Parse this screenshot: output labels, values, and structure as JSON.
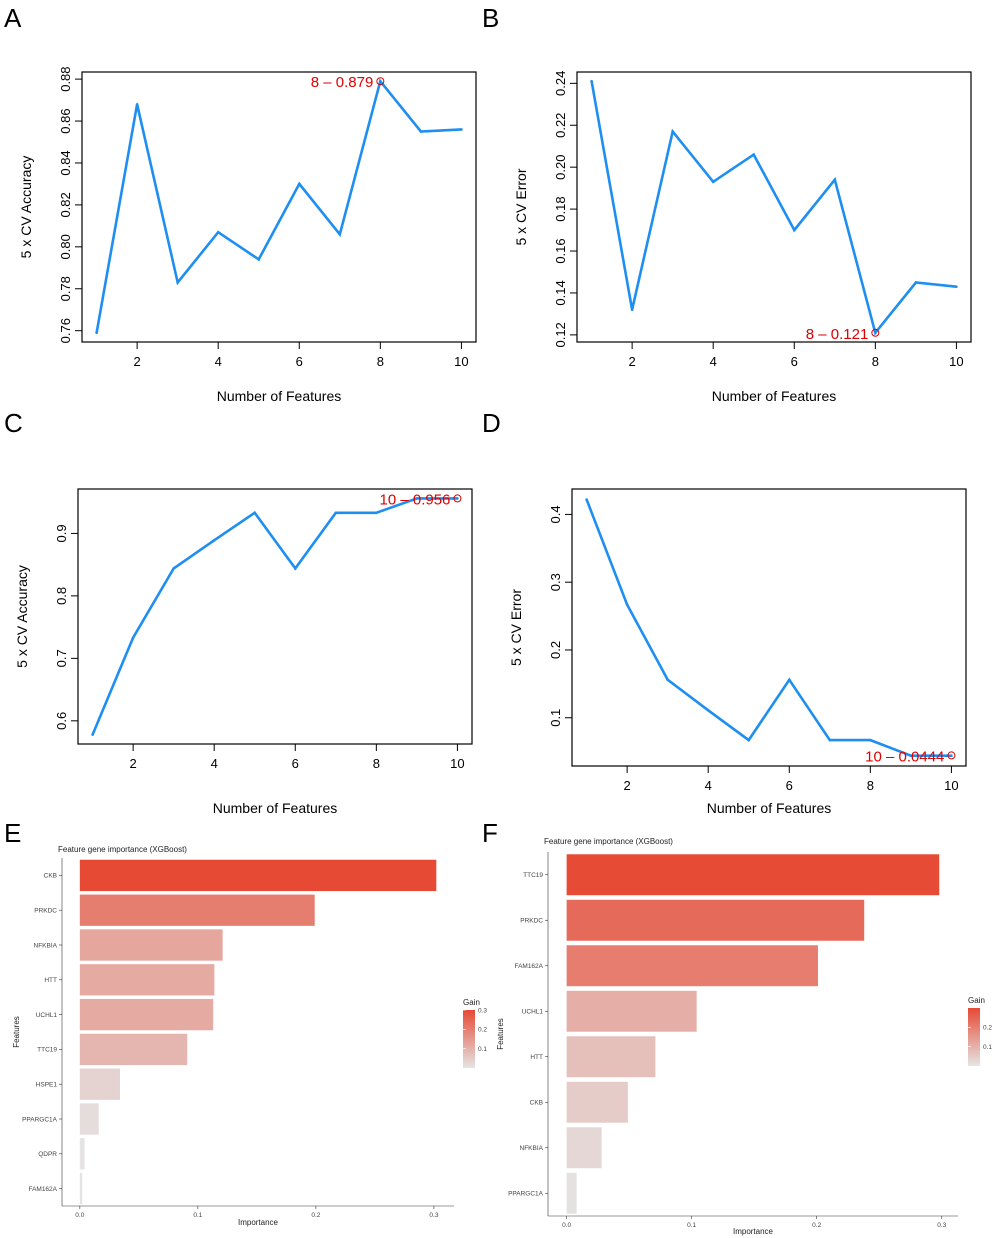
{
  "panel_letters": [
    "A",
    "B",
    "C",
    "D",
    "E",
    "F"
  ],
  "chart_data": [
    {
      "panel": "A",
      "type": "line",
      "xlabel": "Number of Features",
      "ylabel": "5 x CV Accuracy",
      "x": [
        1,
        2,
        3,
        4,
        5,
        6,
        7,
        8,
        9,
        10
      ],
      "y": [
        0.759,
        0.868,
        0.783,
        0.807,
        0.794,
        0.83,
        0.806,
        0.879,
        0.855,
        0.856
      ],
      "xticks": [
        2,
        4,
        6,
        8,
        10
      ],
      "yticks": [
        0.76,
        0.78,
        0.8,
        0.82,
        0.84,
        0.86,
        0.88
      ],
      "ytick_labels": [
        "0.76",
        "0.78",
        "0.80",
        "0.82",
        "0.84",
        "0.86",
        "0.88"
      ],
      "xlim": [
        0.64,
        10.36
      ],
      "ylim": [
        0.7546,
        0.8834
      ],
      "line_color": "#1e8ff0",
      "highlight": {
        "x": 8,
        "y": 0.879,
        "label": "8 – 0.879",
        "side": "left"
      }
    },
    {
      "panel": "B",
      "type": "line",
      "xlabel": "Number of Features",
      "ylabel": "5 x CV Error",
      "x": [
        1,
        2,
        3,
        4,
        5,
        6,
        7,
        8,
        9,
        10
      ],
      "y": [
        0.241,
        0.132,
        0.217,
        0.193,
        0.206,
        0.17,
        0.194,
        0.121,
        0.145,
        0.143
      ],
      "xticks": [
        2,
        4,
        6,
        8,
        10
      ],
      "yticks": [
        0.12,
        0.14,
        0.16,
        0.18,
        0.2,
        0.22,
        0.24
      ],
      "ytick_labels": [
        "0.12",
        "0.14",
        "0.16",
        "0.18",
        "0.20",
        "0.22",
        "0.24"
      ],
      "xlim": [
        0.64,
        10.36
      ],
      "ylim": [
        0.1166,
        0.2454
      ],
      "line_color": "#1e8ff0",
      "highlight": {
        "x": 8,
        "y": 0.121,
        "label": "8 – 0.121",
        "side": "left"
      }
    },
    {
      "panel": "C",
      "type": "line",
      "xlabel": "Number of Features",
      "ylabel": "5 x CV Accuracy",
      "x": [
        1,
        2,
        3,
        4,
        5,
        6,
        7,
        8,
        9,
        10
      ],
      "y": [
        0.578,
        0.733,
        0.844,
        0.889,
        0.933,
        0.844,
        0.933,
        0.933,
        0.956,
        0.956
      ],
      "xticks": [
        2,
        4,
        6,
        8,
        10
      ],
      "yticks": [
        0.6,
        0.7,
        0.8,
        0.9
      ],
      "ytick_labels": [
        "0.6",
        "0.7",
        "0.8",
        "0.9"
      ],
      "xlim": [
        0.64,
        10.36
      ],
      "ylim": [
        0.5629,
        0.9711
      ],
      "line_color": "#1e8ff0",
      "highlight": {
        "x": 10,
        "y": 0.956,
        "label": "10 – 0.956",
        "side": "left"
      }
    },
    {
      "panel": "D",
      "type": "line",
      "xlabel": "Number of Features",
      "ylabel": "5 x CV Error",
      "x": [
        1,
        2,
        3,
        4,
        5,
        6,
        7,
        8,
        9,
        10
      ],
      "y": [
        0.422,
        0.267,
        0.156,
        0.111,
        0.067,
        0.156,
        0.067,
        0.067,
        0.044,
        0.044
      ],
      "xticks": [
        2,
        4,
        6,
        8,
        10
      ],
      "yticks": [
        0.1,
        0.2,
        0.3,
        0.4
      ],
      "ytick_labels": [
        "0.1",
        "0.2",
        "0.3",
        "0.4"
      ],
      "xlim": [
        0.64,
        10.36
      ],
      "ylim": [
        0.0288,
        0.4375
      ],
      "line_color": "#1e8ff0",
      "highlight": {
        "x": 10,
        "y": 0.0444,
        "label": "10 – 0.0444",
        "side": "left"
      }
    },
    {
      "panel": "E",
      "type": "bar",
      "orientation": "horizontal",
      "title": "Feature gene importance (XGBoost)",
      "xlabel": "Importance",
      "ylabel": "Features",
      "categories": [
        "CKB",
        "PRKDC",
        "NFKBIA",
        "HTT",
        "UCHL1",
        "TTC19",
        "HSPE1",
        "PPARGC1A",
        "QDPR",
        "FAM162A"
      ],
      "values": [
        0.302,
        0.199,
        0.121,
        0.114,
        0.113,
        0.091,
        0.034,
        0.016,
        0.004,
        0.002
      ],
      "xticks": [
        0.0,
        0.1,
        0.2,
        0.3
      ],
      "xtick_labels": [
        "0.0",
        "0.1",
        "0.2",
        "0.3"
      ],
      "xlim": [
        -0.0151,
        0.317
      ],
      "legend": {
        "title": "Gain",
        "ticks": [
          0.1,
          0.2,
          0.3
        ],
        "tick_labels": [
          "0.1",
          "0.2",
          "0.3"
        ],
        "range": [
          0.0,
          0.3
        ],
        "low_color": "#e5e5e5",
        "high_color": "#e64a35"
      }
    },
    {
      "panel": "F",
      "type": "bar",
      "orientation": "horizontal",
      "title": "Feature gene importance (XGBoost)",
      "xlabel": "Importance",
      "ylabel": "Features",
      "categories": [
        "TTC19",
        "PRKDC",
        "FAM162A",
        "UCHL1",
        "HTT",
        "CKB",
        "NFKBIA",
        "PPARGC1A"
      ],
      "values": [
        0.298,
        0.238,
        0.201,
        0.104,
        0.071,
        0.049,
        0.028,
        0.008
      ],
      "xticks": [
        0.0,
        0.1,
        0.2,
        0.3
      ],
      "xtick_labels": [
        "0.0",
        "0.1",
        "0.2",
        "0.3"
      ],
      "xlim": [
        -0.0149,
        0.313
      ],
      "legend": {
        "title": "Gain",
        "ticks": [
          0.1,
          0.2
        ],
        "tick_labels": [
          "0.1",
          "0.2"
        ],
        "range": [
          0.0,
          0.3
        ],
        "low_color": "#e5e5e5",
        "high_color": "#e64a35"
      }
    }
  ]
}
